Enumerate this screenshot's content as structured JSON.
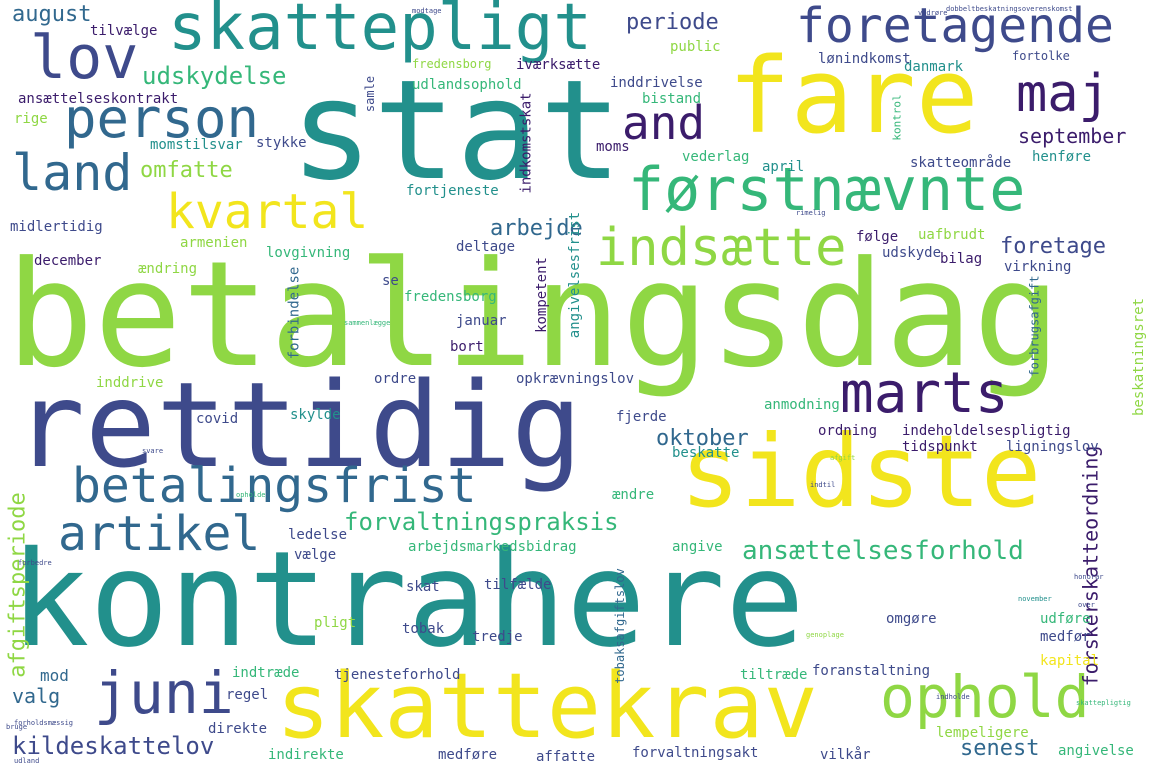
{
  "palette": {
    "background": "#ffffff",
    "dark_purple": "#3b1c6b",
    "indigo": "#3e4a8b",
    "blue": "#31688e",
    "teal": "#22908c",
    "green": "#35b779",
    "lime": "#8fd744",
    "yellow": "#f2e51d"
  },
  "words": [
    {
      "text": "betalingsdag",
      "color": "#8fd744"
    },
    {
      "text": "kontrahere",
      "color": "#22908c"
    },
    {
      "text": "stat",
      "color": "#22908c"
    },
    {
      "text": "rettidig",
      "color": "#3e4a8b"
    },
    {
      "text": "fare",
      "color": "#f2e51d"
    },
    {
      "text": "sidste",
      "color": "#f2e51d"
    },
    {
      "text": "skattekrav",
      "color": "#f2e51d"
    },
    {
      "text": "skattepligt",
      "color": "#22908c"
    },
    {
      "text": "førstnævnte",
      "color": "#35b779"
    },
    {
      "text": "foretagende",
      "color": "#3e4a8b"
    },
    {
      "text": "betalingsfrist",
      "color": "#31688e"
    },
    {
      "text": "indsætte",
      "color": "#8fd744"
    },
    {
      "text": "ophold",
      "color": "#8fd744"
    },
    {
      "text": "juni",
      "color": "#3e4a8b"
    },
    {
      "text": "person",
      "color": "#31688e"
    },
    {
      "text": "marts",
      "color": "#3b1c6b"
    },
    {
      "text": "kvartal",
      "color": "#f2e51d"
    },
    {
      "text": "artikel",
      "color": "#31688e"
    },
    {
      "text": "lov",
      "color": "#3e4a8b"
    },
    {
      "text": "land",
      "color": "#31688e"
    },
    {
      "text": "maj",
      "color": "#3b1c6b"
    },
    {
      "text": "and",
      "color": "#3b1c6b"
    },
    {
      "text": "ansættelsesforhold",
      "color": "#35b779"
    },
    {
      "text": "forvaltningspraksis",
      "color": "#35b779"
    },
    {
      "text": "kildeskattelov",
      "color": "#3e4a8b"
    },
    {
      "text": "afgiftsperiode",
      "color": "#8fd744"
    },
    {
      "text": "forskerskatteordning",
      "color": "#3b1c6b"
    },
    {
      "text": "udskydelse",
      "color": "#35b779"
    },
    {
      "text": "august",
      "color": "#31688e"
    },
    {
      "text": "periode",
      "color": "#3e4a8b"
    },
    {
      "text": "september",
      "color": "#3b1c6b"
    },
    {
      "text": "omfatte",
      "color": "#8fd744"
    },
    {
      "text": "arbejde",
      "color": "#31688e"
    },
    {
      "text": "foretage",
      "color": "#3e4a8b"
    },
    {
      "text": "oktober",
      "color": "#31688e"
    },
    {
      "text": "senest",
      "color": "#31688e"
    },
    {
      "text": "valg",
      "color": "#31688e"
    },
    {
      "text": "mod",
      "color": "#31688e"
    },
    {
      "text": "ansættelseskontrakt",
      "color": "#3b1c6b"
    },
    {
      "text": "tilvælge",
      "color": "#3b1c6b"
    },
    {
      "text": "iværksætte",
      "color": "#3b1c6b"
    },
    {
      "text": "udlandsophold",
      "color": "#35b779"
    },
    {
      "text": "inddrivelse",
      "color": "#3e4a8b"
    },
    {
      "text": "indkomstskat",
      "color": "#3b1c6b"
    },
    {
      "text": "public",
      "color": "#8fd744"
    },
    {
      "text": "bistand",
      "color": "#35b779"
    },
    {
      "text": "lønindkomst",
      "color": "#3e4a8b"
    },
    {
      "text": "danmark",
      "color": "#22908c"
    },
    {
      "text": "fredensborg",
      "color": "#8fd744"
    },
    {
      "text": "samle",
      "color": "#3e4a8b"
    },
    {
      "text": "rige",
      "color": "#8fd744"
    },
    {
      "text": "momstilsvar",
      "color": "#22908c"
    },
    {
      "text": "stykke",
      "color": "#3e4a8b"
    },
    {
      "text": "moms",
      "color": "#3b1c6b"
    },
    {
      "text": "vederlag",
      "color": "#35b779"
    },
    {
      "text": "april",
      "color": "#22908c"
    },
    {
      "text": "skatteområde",
      "color": "#3e4a8b"
    },
    {
      "text": "henføre",
      "color": "#22908c"
    },
    {
      "text": "fortjeneste",
      "color": "#22908c"
    },
    {
      "text": "midlertidig",
      "color": "#3e4a8b"
    },
    {
      "text": "armenien",
      "color": "#8fd744"
    },
    {
      "text": "lovgivning",
      "color": "#35b779"
    },
    {
      "text": "deltage",
      "color": "#3e4a8b"
    },
    {
      "text": "uafbrudt",
      "color": "#8fd744"
    },
    {
      "text": "følge",
      "color": "#3b1c6b"
    },
    {
      "text": "december",
      "color": "#3b1c6b"
    },
    {
      "text": "ændring",
      "color": "#8fd744"
    },
    {
      "text": "se",
      "color": "#3e4a8b"
    },
    {
      "text": "udskyde",
      "color": "#3e4a8b"
    },
    {
      "text": "bilag",
      "color": "#3b1c6b"
    },
    {
      "text": "virkning",
      "color": "#3e4a8b"
    },
    {
      "text": "angivelsesfrist",
      "color": "#22908c"
    },
    {
      "text": "kompetent",
      "color": "#3b1c6b"
    },
    {
      "text": "forbrugsafgift",
      "color": "#31688e"
    },
    {
      "text": "beskatningsret",
      "color": "#8fd744"
    },
    {
      "text": "fredensborg",
      "color": "#35b779"
    },
    {
      "text": "forbindelse",
      "color": "#31688e"
    },
    {
      "text": "januar",
      "color": "#3e4a8b"
    },
    {
      "text": "bort",
      "color": "#3b1c6b"
    },
    {
      "text": "inddrive",
      "color": "#8fd744"
    },
    {
      "text": "ordre",
      "color": "#3e4a8b"
    },
    {
      "text": "opkrævningslov",
      "color": "#3e4a8b"
    },
    {
      "text": "anmodning",
      "color": "#35b779"
    },
    {
      "text": "covid",
      "color": "#3e4a8b"
    },
    {
      "text": "skylde",
      "color": "#22908c"
    },
    {
      "text": "fjerde",
      "color": "#3e4a8b"
    },
    {
      "text": "ordning",
      "color": "#3b1c6b"
    },
    {
      "text": "indeholdelsespligtig",
      "color": "#3b1c6b"
    },
    {
      "text": "tidspunkt",
      "color": "#3b1c6b"
    },
    {
      "text": "ligningslov",
      "color": "#3e4a8b"
    },
    {
      "text": "beskatte",
      "color": "#22908c"
    },
    {
      "text": "ændre",
      "color": "#35b779"
    },
    {
      "text": "ledelse",
      "color": "#3e4a8b"
    },
    {
      "text": "vælge",
      "color": "#3e4a8b"
    },
    {
      "text": "arbejdsmarkedsbidrag",
      "color": "#35b779"
    },
    {
      "text": "angive",
      "color": "#35b779"
    },
    {
      "text": "tilfælde",
      "color": "#3e4a8b"
    },
    {
      "text": "skat",
      "color": "#3e4a8b"
    },
    {
      "text": "pligt",
      "color": "#8fd744"
    },
    {
      "text": "tobak",
      "color": "#3e4a8b"
    },
    {
      "text": "tredje",
      "color": "#3e4a8b"
    },
    {
      "text": "omgøre",
      "color": "#3e4a8b"
    },
    {
      "text": "udføre",
      "color": "#35b779"
    },
    {
      "text": "medfør",
      "color": "#3e4a8b"
    },
    {
      "text": "tobaksafgiftslov",
      "color": "#31688e"
    },
    {
      "text": "indtræde",
      "color": "#35b779"
    },
    {
      "text": "tjenesteforhold",
      "color": "#3e4a8b"
    },
    {
      "text": "tiltræde",
      "color": "#35b779"
    },
    {
      "text": "foranstaltning",
      "color": "#3e4a8b"
    },
    {
      "text": "kapital",
      "color": "#f2e51d"
    },
    {
      "text": "regel",
      "color": "#3e4a8b"
    },
    {
      "text": "direkte",
      "color": "#3e4a8b"
    },
    {
      "text": "indirekte",
      "color": "#35b779"
    },
    {
      "text": "medføre",
      "color": "#3e4a8b"
    },
    {
      "text": "affatte",
      "color": "#3e4a8b"
    },
    {
      "text": "forvaltningsakt",
      "color": "#3e4a8b"
    },
    {
      "text": "vilkår",
      "color": "#3e4a8b"
    },
    {
      "text": "lempeligere",
      "color": "#8fd744"
    },
    {
      "text": "angivelse",
      "color": "#35b779"
    },
    {
      "text": "fortolke",
      "color": "#3e4a8b"
    },
    {
      "text": "kontrol",
      "color": "#35b779"
    },
    {
      "text": "afgift",
      "color": "#8fd744"
    },
    {
      "text": "sammenlægge",
      "color": "#35b779"
    },
    {
      "text": "dobbeltbeskatningsoverenskomst",
      "color": "#3e4a8b"
    },
    {
      "text": "indholde",
      "color": "#3e4a8b"
    },
    {
      "text": "forholdsmæssig",
      "color": "#3e4a8b"
    },
    {
      "text": "skattepligtig",
      "color": "#35b779"
    },
    {
      "text": "genoplage",
      "color": "#8fd744"
    },
    {
      "text": "november",
      "color": "#22908c"
    },
    {
      "text": "over",
      "color": "#3e4a8b"
    },
    {
      "text": "bruge",
      "color": "#3e4a8b"
    },
    {
      "text": "udland",
      "color": "#3e4a8b"
    },
    {
      "text": "modtage",
      "color": "#3e4a8b"
    },
    {
      "text": "honorar",
      "color": "#3e4a8b"
    },
    {
      "text": "vedrøre",
      "color": "#3e4a8b"
    },
    {
      "text": "opholde",
      "color": "#35b779"
    },
    {
      "text": "svare",
      "color": "#3e4a8b"
    },
    {
      "text": "rimelig",
      "color": "#3e4a8b"
    },
    {
      "text": "indtil",
      "color": "#3e4a8b"
    },
    {
      "text": "forbedre",
      "color": "#3e4a8b"
    }
  ]
}
